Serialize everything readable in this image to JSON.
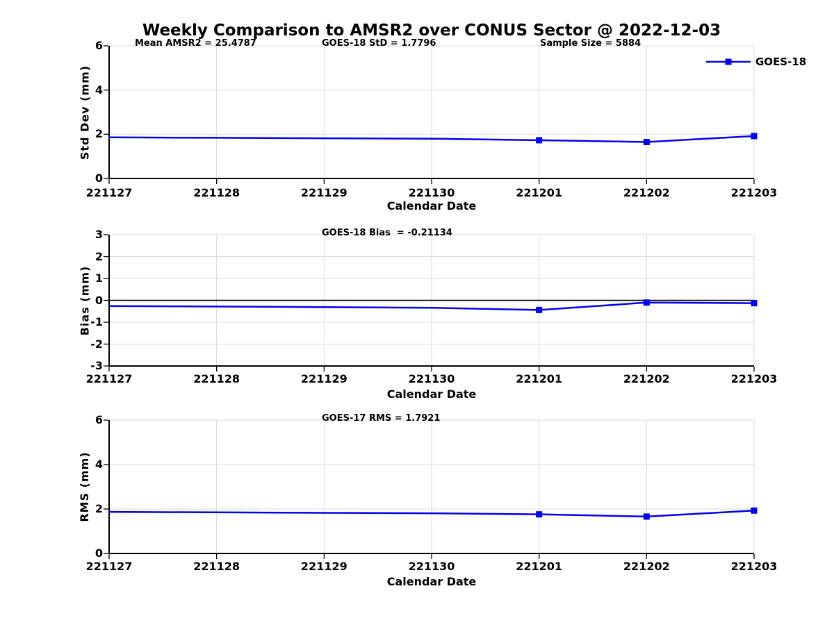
{
  "title": "Weekly Comparison to AMSR2 over CONUS Sector @ 2022-12-03",
  "x_axis_label": "Calendar Date",
  "legend": {
    "label": "GOES-18"
  },
  "colors": {
    "line": "#0000EE",
    "grid": "#D9D9D9",
    "axis": "#000000",
    "zero_line": "#000000",
    "text": "#000000",
    "background": "#FFFFFF"
  },
  "chart_data": [
    {
      "type": "line",
      "name": "std-dev",
      "ylabel": "Std Dev (mm)",
      "ylim": [
        0,
        6
      ],
      "yticks": [
        0,
        2,
        4,
        6
      ],
      "grid": true,
      "annotations": [
        "Mean AMSR2 = 25.4787",
        "GOES-18 StD = 1.7796",
        "Sample Size = 5884"
      ],
      "categories": [
        "221127",
        "221128",
        "221129",
        "221130",
        "221201",
        "221202",
        "221203"
      ],
      "series": [
        {
          "name": "GOES-18",
          "values": [
            1.86,
            1.84,
            1.82,
            1.8,
            1.73,
            1.65,
            1.92
          ],
          "marker": "square",
          "marker_points": [
            4,
            5,
            6
          ]
        }
      ]
    },
    {
      "type": "line",
      "name": "bias",
      "ylabel": "Bias (mm)",
      "ylim": [
        -3,
        3
      ],
      "yticks": [
        -3,
        -2,
        -1,
        0,
        1,
        2,
        3
      ],
      "grid": true,
      "zero_line": true,
      "annotations": [
        "GOES-18 Bias  = -0.21134"
      ],
      "categories": [
        "221127",
        "221128",
        "221129",
        "221130",
        "221201",
        "221202",
        "221203"
      ],
      "series": [
        {
          "name": "GOES-18",
          "values": [
            -0.26,
            -0.28,
            -0.31,
            -0.34,
            -0.44,
            -0.1,
            -0.13
          ],
          "marker": "square",
          "marker_points": [
            4,
            5,
            6
          ]
        }
      ]
    },
    {
      "type": "line",
      "name": "rms",
      "ylabel": "RMS (mm)",
      "ylim": [
        0,
        6
      ],
      "yticks": [
        0,
        2,
        4,
        6
      ],
      "grid": true,
      "annotations": [
        "GOES-17 RMS = 1.7921"
      ],
      "categories": [
        "221127",
        "221128",
        "221129",
        "221130",
        "221201",
        "221202",
        "221203"
      ],
      "series": [
        {
          "name": "GOES-18",
          "values": [
            1.87,
            1.85,
            1.83,
            1.81,
            1.76,
            1.66,
            1.93
          ],
          "marker": "square",
          "marker_points": [
            4,
            5,
            6
          ]
        }
      ]
    }
  ]
}
